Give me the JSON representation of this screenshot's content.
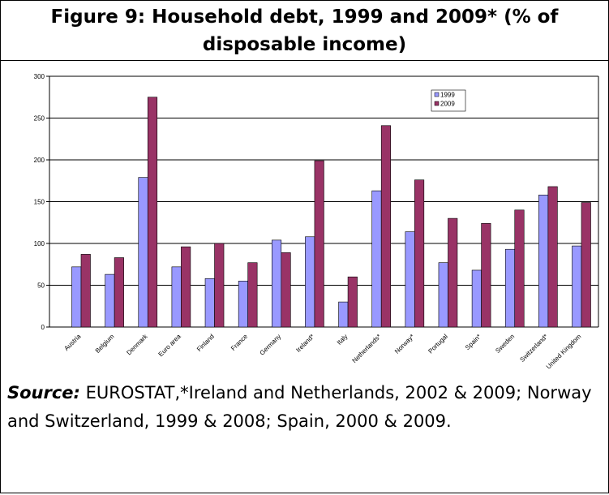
{
  "title": "Figure 9: Household debt, 1999 and 2009* (% of disposable income)",
  "chart_data": {
    "type": "bar",
    "categories": [
      "Austria",
      "Belgium",
      "Denmark",
      "Euro area",
      "Finland",
      "France",
      "Germany",
      "Ireland*",
      "Italy",
      "Netherlands*",
      "Norway*",
      "Portugal",
      "Spain*",
      "Sweden",
      "Switzerland*",
      "United Kingdom"
    ],
    "series": [
      {
        "name": "1999",
        "color": "#9999ff",
        "values": [
          72,
          63,
          179,
          72,
          58,
          55,
          104,
          108,
          30,
          163,
          114,
          77,
          68,
          93,
          158,
          97
        ]
      },
      {
        "name": "2009",
        "color": "#993366",
        "values": [
          87,
          83,
          275,
          96,
          100,
          77,
          89,
          199,
          60,
          241,
          176,
          130,
          124,
          140,
          168,
          149
        ]
      }
    ],
    "ylim": [
      0,
      300
    ],
    "yticks": [
      0,
      50,
      100,
      150,
      200,
      250,
      300
    ],
    "grid": true,
    "legend": "top-right"
  },
  "source": {
    "label": "Source:",
    "text": "EUROSTAT,*Ireland and Netherlands, 2002 & 2009; Norway and Switzerland, 1999 & 2008; Spain, 2000 & 2009."
  }
}
